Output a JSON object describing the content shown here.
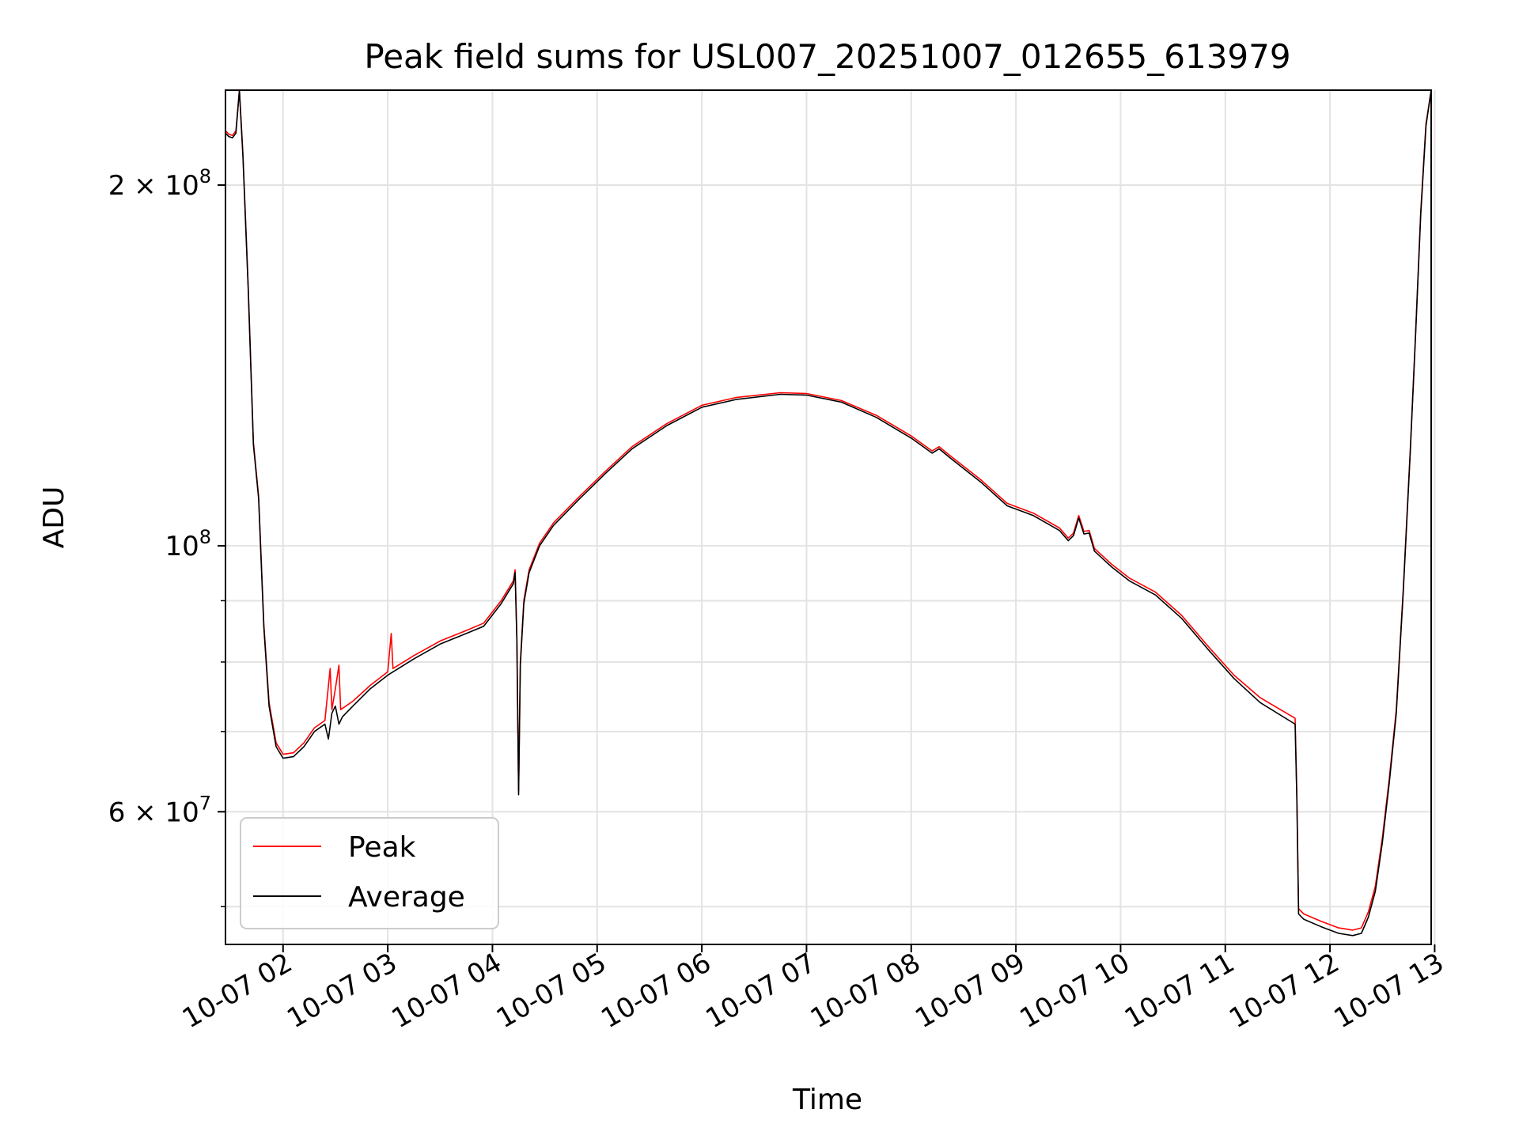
{
  "chart_data": {
    "type": "line",
    "title": "Peak field sums for USL007_20251007_012655_613979",
    "xlabel": "Time",
    "ylabel": "ADU",
    "yscale": "log",
    "ylim": [
      46500000,
      240000000
    ],
    "xlim": [
      "2025-10-07 01:27",
      "2025-10-07 12:58"
    ],
    "grid": true,
    "legend_position": "lower-left",
    "x_ticks": [
      {
        "t": "2025-10-07 02:00",
        "label": "10-07 02"
      },
      {
        "t": "2025-10-07 03:00",
        "label": "10-07 03"
      },
      {
        "t": "2025-10-07 04:00",
        "label": "10-07 04"
      },
      {
        "t": "2025-10-07 05:00",
        "label": "10-07 05"
      },
      {
        "t": "2025-10-07 06:00",
        "label": "10-07 06"
      },
      {
        "t": "2025-10-07 07:00",
        "label": "10-07 07"
      },
      {
        "t": "2025-10-07 08:00",
        "label": "10-07 08"
      },
      {
        "t": "2025-10-07 09:00",
        "label": "10-07 09"
      },
      {
        "t": "2025-10-07 10:00",
        "label": "10-07 10"
      },
      {
        "t": "2025-10-07 11:00",
        "label": "10-07 11"
      },
      {
        "t": "2025-10-07 12:00",
        "label": "10-07 12"
      },
      {
        "t": "2025-10-07 13:00",
        "label": "10-07 13"
      }
    ],
    "y_major_ticks": [
      {
        "value": 60000000,
        "mantissa": "6",
        "exponent": "7"
      },
      {
        "value": 100000000,
        "mantissa": "",
        "exponent": "8"
      },
      {
        "value": 200000000,
        "mantissa": "2",
        "exponent": "8"
      }
    ],
    "y_minor_ticks": [
      50000000,
      70000000,
      80000000,
      90000000
    ],
    "series": [
      {
        "name": "Peak",
        "color": "#ff0000",
        "points": [
          [
            "2025-10-07 01:27",
            222000000
          ],
          [
            "2025-10-07 01:29",
            220500000
          ],
          [
            "2025-10-07 01:31",
            220000000
          ],
          [
            "2025-10-07 01:33",
            222000000
          ],
          [
            "2025-10-07 01:35",
            240000000
          ],
          [
            "2025-10-07 01:37",
            212000000
          ],
          [
            "2025-10-07 01:40",
            165000000
          ],
          [
            "2025-10-07 01:43",
            122000000
          ],
          [
            "2025-10-07 01:46",
            110000000
          ],
          [
            "2025-10-07 01:49",
            86000000
          ],
          [
            "2025-10-07 01:52",
            74000000
          ],
          [
            "2025-10-07 01:56",
            68500000
          ],
          [
            "2025-10-07 02:00",
            67000000
          ],
          [
            "2025-10-07 02:06",
            67200000
          ],
          [
            "2025-10-07 02:12",
            68500000
          ],
          [
            "2025-10-07 02:18",
            70500000
          ],
          [
            "2025-10-07 02:24",
            71500000
          ],
          [
            "2025-10-07 02:27",
            79000000
          ],
          [
            "2025-10-07 02:28",
            73000000
          ],
          [
            "2025-10-07 02:30",
            76000000
          ],
          [
            "2025-10-07 02:32",
            79500000
          ],
          [
            "2025-10-07 02:33",
            73000000
          ],
          [
            "2025-10-07 02:40",
            74200000
          ],
          [
            "2025-10-07 02:50",
            76500000
          ],
          [
            "2025-10-07 03:00",
            78500000
          ],
          [
            "2025-10-07 03:02",
            84500000
          ],
          [
            "2025-10-07 03:03",
            79000000
          ],
          [
            "2025-10-07 03:15",
            81000000
          ],
          [
            "2025-10-07 03:30",
            83300000
          ],
          [
            "2025-10-07 03:45",
            85000000
          ],
          [
            "2025-10-07 03:55",
            86200000
          ],
          [
            "2025-10-07 04:05",
            90000000
          ],
          [
            "2025-10-07 04:12",
            93500000
          ],
          [
            "2025-10-07 04:13",
            95500000
          ],
          [
            "2025-10-07 04:14",
            84000000
          ],
          [
            "2025-10-07 04:15",
            62500000
          ],
          [
            "2025-10-07 04:16",
            80000000
          ],
          [
            "2025-10-07 04:18",
            90000000
          ],
          [
            "2025-10-07 04:21",
            95500000
          ],
          [
            "2025-10-07 04:27",
            100500000
          ],
          [
            "2025-10-07 04:35",
            104500000
          ],
          [
            "2025-10-07 04:50",
            110000000
          ],
          [
            "2025-10-07 05:05",
            115500000
          ],
          [
            "2025-10-07 05:20",
            121000000
          ],
          [
            "2025-10-07 05:40",
            126500000
          ],
          [
            "2025-10-07 06:00",
            131000000
          ],
          [
            "2025-10-07 06:20",
            133000000
          ],
          [
            "2025-10-07 06:45",
            134200000
          ],
          [
            "2025-10-07 07:00",
            134000000
          ],
          [
            "2025-10-07 07:20",
            132200000
          ],
          [
            "2025-10-07 07:40",
            128500000
          ],
          [
            "2025-10-07 08:00",
            123500000
          ],
          [
            "2025-10-07 08:12",
            120000000
          ],
          [
            "2025-10-07 08:16",
            121000000
          ],
          [
            "2025-10-07 08:22",
            119000000
          ],
          [
            "2025-10-07 08:40",
            113500000
          ],
          [
            "2025-10-07 08:55",
            108500000
          ],
          [
            "2025-10-07 09:10",
            106500000
          ],
          [
            "2025-10-07 09:25",
            103500000
          ],
          [
            "2025-10-07 09:30",
            101500000
          ],
          [
            "2025-10-07 09:33",
            102500000
          ],
          [
            "2025-10-07 09:36",
            106000000
          ],
          [
            "2025-10-07 09:39",
            102800000
          ],
          [
            "2025-10-07 09:42",
            103000000
          ],
          [
            "2025-10-07 09:45",
            99500000
          ],
          [
            "2025-10-07 09:55",
            96500000
          ],
          [
            "2025-10-07 10:05",
            94000000
          ],
          [
            "2025-10-07 10:20",
            91500000
          ],
          [
            "2025-10-07 10:35",
            87500000
          ],
          [
            "2025-10-07 10:50",
            82500000
          ],
          [
            "2025-10-07 11:05",
            78000000
          ],
          [
            "2025-10-07 11:20",
            74700000
          ],
          [
            "2025-10-07 11:40",
            71800000
          ],
          [
            "2025-10-07 11:41",
            62000000
          ],
          [
            "2025-10-07 11:42",
            49800000
          ],
          [
            "2025-10-07 11:45",
            49300000
          ],
          [
            "2025-10-07 11:55",
            48600000
          ],
          [
            "2025-10-07 12:05",
            48000000
          ],
          [
            "2025-10-07 12:13",
            47800000
          ],
          [
            "2025-10-07 12:18",
            48000000
          ],
          [
            "2025-10-07 12:22",
            49500000
          ],
          [
            "2025-10-07 12:26",
            52000000
          ],
          [
            "2025-10-07 12:30",
            57000000
          ],
          [
            "2025-10-07 12:34",
            64000000
          ],
          [
            "2025-10-07 12:38",
            73000000
          ],
          [
            "2025-10-07 12:42",
            92000000
          ],
          [
            "2025-10-07 12:46",
            120000000
          ],
          [
            "2025-10-07 12:49",
            150000000
          ],
          [
            "2025-10-07 12:52",
            190000000
          ],
          [
            "2025-10-07 12:55",
            225000000
          ],
          [
            "2025-10-07 12:58",
            240000000
          ]
        ]
      },
      {
        "name": "Average",
        "color": "#000000",
        "points": [
          [
            "2025-10-07 01:27",
            221000000
          ],
          [
            "2025-10-07 01:29",
            219500000
          ],
          [
            "2025-10-07 01:31",
            219000000
          ],
          [
            "2025-10-07 01:33",
            221000000
          ],
          [
            "2025-10-07 01:35",
            240000000
          ],
          [
            "2025-10-07 01:37",
            211000000
          ],
          [
            "2025-10-07 01:40",
            164000000
          ],
          [
            "2025-10-07 01:43",
            121500000
          ],
          [
            "2025-10-07 01:46",
            109500000
          ],
          [
            "2025-10-07 01:49",
            85500000
          ],
          [
            "2025-10-07 01:52",
            73500000
          ],
          [
            "2025-10-07 01:56",
            68000000
          ],
          [
            "2025-10-07 02:00",
            66500000
          ],
          [
            "2025-10-07 02:06",
            66700000
          ],
          [
            "2025-10-07 02:12",
            68000000
          ],
          [
            "2025-10-07 02:18",
            70000000
          ],
          [
            "2025-10-07 02:24",
            71000000
          ],
          [
            "2025-10-07 02:26",
            69000000
          ],
          [
            "2025-10-07 02:28",
            72500000
          ],
          [
            "2025-10-07 02:30",
            73500000
          ],
          [
            "2025-10-07 02:32",
            71000000
          ],
          [
            "2025-10-07 02:34",
            72000000
          ],
          [
            "2025-10-07 02:40",
            73500000
          ],
          [
            "2025-10-07 02:50",
            76000000
          ],
          [
            "2025-10-07 03:00",
            78000000
          ],
          [
            "2025-10-07 03:15",
            80500000
          ],
          [
            "2025-10-07 03:30",
            82800000
          ],
          [
            "2025-10-07 03:45",
            84500000
          ],
          [
            "2025-10-07 03:55",
            85700000
          ],
          [
            "2025-10-07 04:05",
            89500000
          ],
          [
            "2025-10-07 04:12",
            93000000
          ],
          [
            "2025-10-07 04:13",
            95000000
          ],
          [
            "2025-10-07 04:14",
            83500000
          ],
          [
            "2025-10-07 04:15",
            62000000
          ],
          [
            "2025-10-07 04:16",
            79500000
          ],
          [
            "2025-10-07 04:18",
            89500000
          ],
          [
            "2025-10-07 04:21",
            95000000
          ],
          [
            "2025-10-07 04:27",
            100000000
          ],
          [
            "2025-10-07 04:35",
            104000000
          ],
          [
            "2025-10-07 04:50",
            109500000
          ],
          [
            "2025-10-07 05:05",
            115000000
          ],
          [
            "2025-10-07 05:20",
            120500000
          ],
          [
            "2025-10-07 05:40",
            126000000
          ],
          [
            "2025-10-07 06:00",
            130500000
          ],
          [
            "2025-10-07 06:20",
            132500000
          ],
          [
            "2025-10-07 06:45",
            133800000
          ],
          [
            "2025-10-07 07:00",
            133600000
          ],
          [
            "2025-10-07 07:20",
            131800000
          ],
          [
            "2025-10-07 07:40",
            128000000
          ],
          [
            "2025-10-07 08:00",
            123000000
          ],
          [
            "2025-10-07 08:12",
            119500000
          ],
          [
            "2025-10-07 08:16",
            120500000
          ],
          [
            "2025-10-07 08:22",
            118500000
          ],
          [
            "2025-10-07 08:40",
            113000000
          ],
          [
            "2025-10-07 08:55",
            108000000
          ],
          [
            "2025-10-07 09:10",
            106000000
          ],
          [
            "2025-10-07 09:25",
            103000000
          ],
          [
            "2025-10-07 09:30",
            101000000
          ],
          [
            "2025-10-07 09:33",
            102000000
          ],
          [
            "2025-10-07 09:36",
            105500000
          ],
          [
            "2025-10-07 09:39",
            102300000
          ],
          [
            "2025-10-07 09:42",
            102500000
          ],
          [
            "2025-10-07 09:45",
            99000000
          ],
          [
            "2025-10-07 09:55",
            96000000
          ],
          [
            "2025-10-07 10:05",
            93500000
          ],
          [
            "2025-10-07 10:20",
            91000000
          ],
          [
            "2025-10-07 10:35",
            87000000
          ],
          [
            "2025-10-07 10:50",
            82000000
          ],
          [
            "2025-10-07 11:05",
            77500000
          ],
          [
            "2025-10-07 11:20",
            74000000
          ],
          [
            "2025-10-07 11:40",
            71000000
          ],
          [
            "2025-10-07 11:41",
            61500000
          ],
          [
            "2025-10-07 11:42",
            49300000
          ],
          [
            "2025-10-07 11:45",
            48800000
          ],
          [
            "2025-10-07 11:55",
            48100000
          ],
          [
            "2025-10-07 12:05",
            47500000
          ],
          [
            "2025-10-07 12:13",
            47300000
          ],
          [
            "2025-10-07 12:18",
            47500000
          ],
          [
            "2025-10-07 12:22",
            49000000
          ],
          [
            "2025-10-07 12:26",
            51500000
          ],
          [
            "2025-10-07 12:30",
            56500000
          ],
          [
            "2025-10-07 12:34",
            63500000
          ],
          [
            "2025-10-07 12:38",
            72500000
          ],
          [
            "2025-10-07 12:42",
            91500000
          ],
          [
            "2025-10-07 12:46",
            119500000
          ],
          [
            "2025-10-07 12:49",
            149500000
          ],
          [
            "2025-10-07 12:52",
            189000000
          ],
          [
            "2025-10-07 12:55",
            224000000
          ],
          [
            "2025-10-07 12:58",
            240000000
          ]
        ]
      }
    ]
  }
}
